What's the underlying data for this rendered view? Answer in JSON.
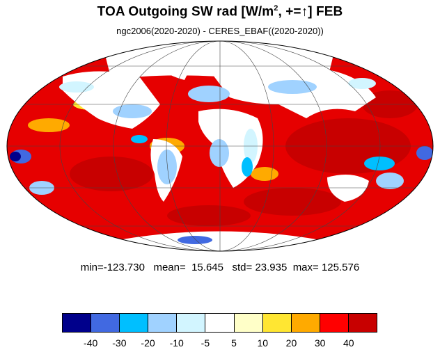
{
  "title": {
    "main": "TOA Outgoing SW rad [W/m",
    "sup": "2",
    "rest": ", +=",
    "arrow": "↑",
    "end": "] FEB"
  },
  "subtitle": "ngc2006(2020-2020) - CERES_EBAF((2020-2020))",
  "stats": {
    "min_label": "min=",
    "min": "-123.730",
    "mean_label": "mean=",
    "mean": "15.645",
    "std_label": "std=",
    "std": "23.935",
    "max_label": "max=",
    "max": "125.576"
  },
  "colorbar": {
    "colors": [
      "#00008b",
      "#4169e1",
      "#00bfff",
      "#a0d2ff",
      "#d2f5ff",
      "#ffffff",
      "#ffffc8",
      "#ffe632",
      "#ffaa00",
      "#ff0000",
      "#c80000"
    ],
    "labels": [
      "-40",
      "-30",
      "-20",
      "-10",
      "-5",
      "5",
      "10",
      "20",
      "30",
      "40"
    ]
  },
  "map": {
    "projection": "mollweide",
    "ocean_color": "#e60000",
    "land_color": "#ffffff"
  }
}
